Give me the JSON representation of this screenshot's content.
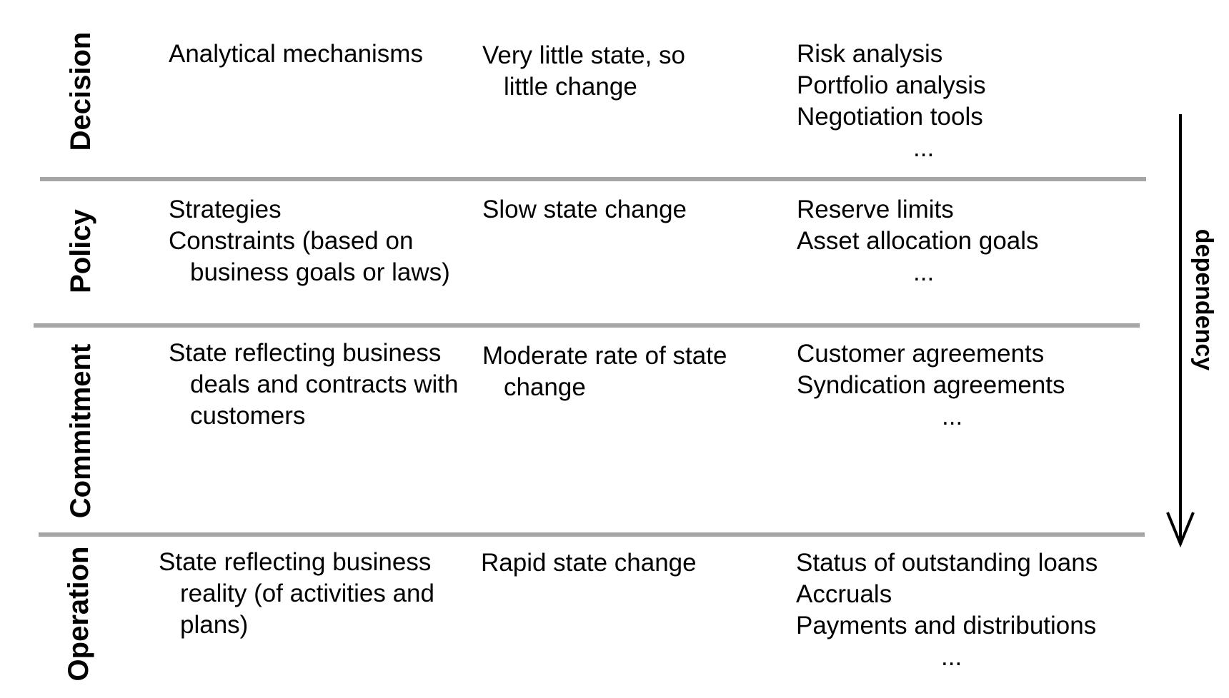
{
  "layers": [
    {
      "label": "Decision",
      "description": [
        "Analytical mechanisms"
      ],
      "change": [
        "Very little state, so",
        "little change"
      ],
      "examples": [
        "Risk analysis",
        "Portfolio analysis",
        "Negotiation tools",
        "..."
      ]
    },
    {
      "label": "Policy",
      "description": [
        "Strategies",
        "Constraints (based on",
        "business goals or laws)"
      ],
      "change": [
        "Slow state change"
      ],
      "examples": [
        "Reserve limits",
        "Asset allocation goals",
        "..."
      ]
    },
    {
      "label": "Commitment",
      "description": [
        "State reflecting business",
        "deals and contracts with",
        "customers"
      ],
      "change": [
        "Moderate rate of state",
        "change"
      ],
      "examples": [
        "Customer agreements",
        "Syndication agreements",
        "..."
      ]
    },
    {
      "label": "Operation",
      "description": [
        "State reflecting business",
        "reality (of activities and",
        "plans)"
      ],
      "change": [
        "Rapid state change"
      ],
      "examples": [
        "Status of outstanding loans",
        "Accruals",
        "Payments and distributions",
        "..."
      ]
    }
  ],
  "dependency_label": "dependency",
  "colors": {
    "divider": "#a6a6a6",
    "text": "#000000",
    "background": "#ffffff"
  }
}
